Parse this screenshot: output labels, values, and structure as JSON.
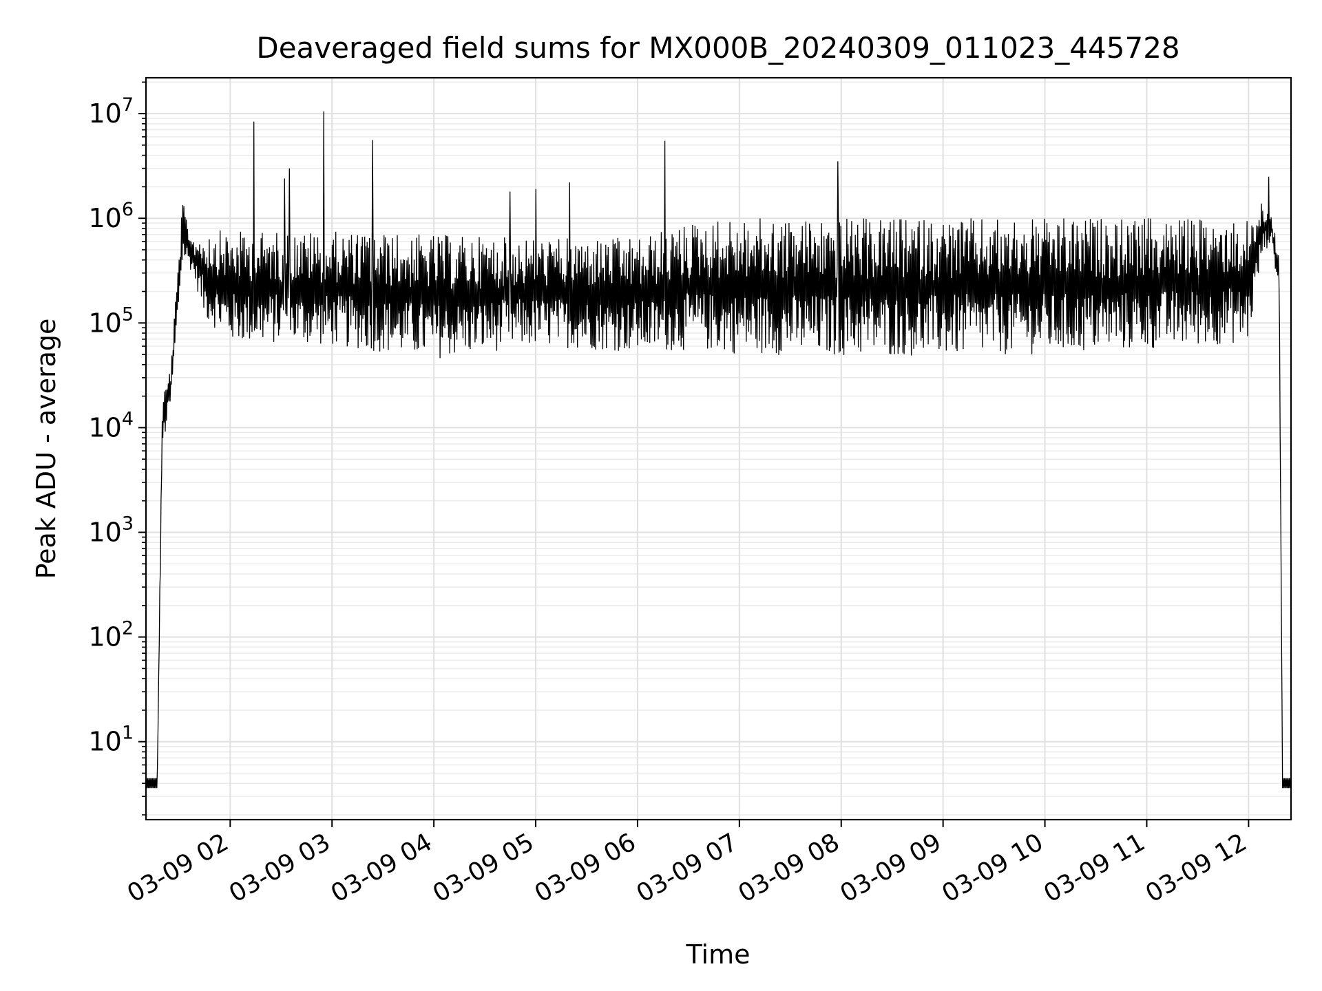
{
  "chart_data": {
    "type": "line",
    "title": "Deaveraged field sums for MX000B_20240309_011023_445728",
    "xlabel": "Time",
    "ylabel": "Peak ADU - average",
    "yscale": "log",
    "ylim": [
      1.8,
      22000000
    ],
    "xlim": [
      "2024-03-09 01:10:23",
      "2024-03-09 12:25:00"
    ],
    "grid": true,
    "line_color": "#000000",
    "x_ticks": [
      {
        "t": "2024-03-09 02:00",
        "label": "03-09 02"
      },
      {
        "t": "2024-03-09 03:00",
        "label": "03-09 03"
      },
      {
        "t": "2024-03-09 04:00",
        "label": "03-09 04"
      },
      {
        "t": "2024-03-09 05:00",
        "label": "03-09 05"
      },
      {
        "t": "2024-03-09 06:00",
        "label": "03-09 06"
      },
      {
        "t": "2024-03-09 07:00",
        "label": "03-09 07"
      },
      {
        "t": "2024-03-09 08:00",
        "label": "03-09 08"
      },
      {
        "t": "2024-03-09 09:00",
        "label": "03-09 09"
      },
      {
        "t": "2024-03-09 10:00",
        "label": "03-09 10"
      },
      {
        "t": "2024-03-09 11:00",
        "label": "03-09 11"
      },
      {
        "t": "2024-03-09 12:00",
        "label": "03-09 12"
      }
    ],
    "y_ticks": [
      {
        "value": 10,
        "base": "10",
        "exp": "1"
      },
      {
        "value": 100,
        "base": "10",
        "exp": "2"
      },
      {
        "value": 1000,
        "base": "10",
        "exp": "3"
      },
      {
        "value": 10000,
        "base": "10",
        "exp": "4"
      },
      {
        "value": 100000,
        "base": "10",
        "exp": "5"
      },
      {
        "value": 1000000,
        "base": "10",
        "exp": "6"
      },
      {
        "value": 10000000,
        "base": "10",
        "exp": "7"
      }
    ],
    "envelope": {
      "x": [
        "2024-03-09 01:10:23",
        "2024-03-09 01:17:00",
        "2024-03-09 01:20:00",
        "2024-03-09 01:25:00",
        "2024-03-09 01:32:00",
        "2024-03-09 01:38:00",
        "2024-03-09 01:45:00",
        "2024-03-09 02:00:00",
        "2024-03-09 03:00:00",
        "2024-03-09 04:00:00",
        "2024-03-09 05:00:00",
        "2024-03-09 06:00:00",
        "2024-03-09 06:35:00",
        "2024-03-09 07:00:00",
        "2024-03-09 08:00:00",
        "2024-03-09 09:00:00",
        "2024-03-09 10:00:00",
        "2024-03-09 11:00:00",
        "2024-03-09 12:00:00",
        "2024-03-09 12:08:00",
        "2024-03-09 12:13:00",
        "2024-03-09 12:18:00",
        "2024-03-09 12:20:00",
        "2024-03-09 12:25:00"
      ],
      "low": [
        4,
        4,
        6000,
        16000,
        400000,
        300000,
        110000,
        65000,
        60000,
        45000,
        60000,
        52000,
        55000,
        50000,
        48000,
        48000,
        50000,
        55000,
        65000,
        420000,
        600000,
        200000,
        4,
        4
      ],
      "high": [
        4,
        4,
        20000,
        40000,
        1450000,
        650000,
        800000,
        750000,
        750000,
        700000,
        650000,
        650000,
        950000,
        1000000,
        1000000,
        1000000,
        1000000,
        1000000,
        1000000,
        1500000,
        1300000,
        400000,
        4,
        4
      ]
    },
    "spikes": [
      {
        "t": "2024-03-09 02:14:00",
        "value": 8400000
      },
      {
        "t": "2024-03-09 02:55:00",
        "value": 10500000
      },
      {
        "t": "2024-03-09 03:24:00",
        "value": 5600000
      },
      {
        "t": "2024-03-09 06:16:00",
        "value": 5500000
      },
      {
        "t": "2024-03-09 07:58:00",
        "value": 3500000
      },
      {
        "t": "2024-03-09 12:12:00",
        "value": 2500000
      },
      {
        "t": "2024-03-09 02:35:00",
        "value": 3000000
      },
      {
        "t": "2024-03-09 02:32:00",
        "value": 2400000
      },
      {
        "t": "2024-03-09 05:20:00",
        "value": 2200000
      },
      {
        "t": "2024-03-09 04:45:00",
        "value": 1800000
      },
      {
        "t": "2024-03-09 05:00:00",
        "value": 1900000
      }
    ]
  }
}
